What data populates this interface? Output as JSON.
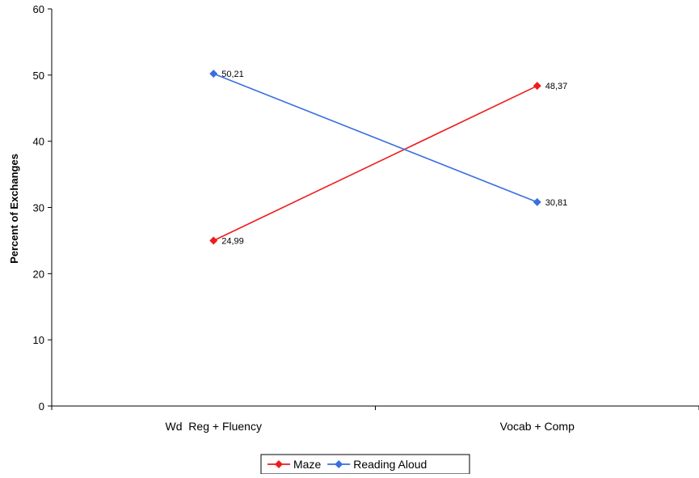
{
  "chart_data": {
    "type": "line",
    "title": "",
    "xlabel": "",
    "ylabel": "Percent of Exchanges",
    "categories": [
      "Wd  Reg + Fluency",
      "Vocab + Comp"
    ],
    "ylim": [
      0,
      60
    ],
    "yticks": [
      0,
      10,
      20,
      30,
      40,
      50,
      60
    ],
    "grid": false,
    "legend_position": "bottom",
    "series": [
      {
        "name": "Maze",
        "values": [
          24.99,
          48.37
        ],
        "labels": [
          "24,99",
          "48,37"
        ],
        "color": "#ee1c1c",
        "marker": "diamond"
      },
      {
        "name": "Reading Aloud",
        "values": [
          50.21,
          30.81
        ],
        "labels": [
          "50,21",
          "30,81"
        ],
        "color": "#3a6fe0",
        "marker": "diamond"
      }
    ]
  }
}
